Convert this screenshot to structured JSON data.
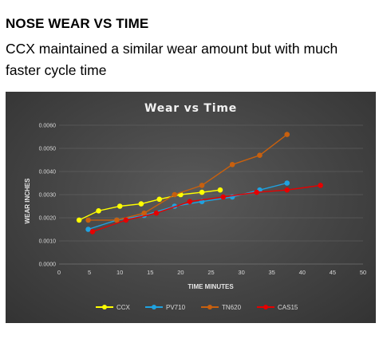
{
  "heading": "NOSE WEAR VS TIME",
  "subtitle": "CCX maintained a similar wear amount but with much faster cycle time",
  "chart_data": {
    "type": "line",
    "title": "Wear vs Time",
    "xlabel": "TIME MINUTES",
    "ylabel": "WEAR INCHES",
    "xlim": [
      0,
      50
    ],
    "ylim": [
      0,
      0.006
    ],
    "x_ticks": [
      "0",
      "5",
      "10",
      "15",
      "20",
      "25",
      "30",
      "35",
      "40",
      "45",
      "50"
    ],
    "y_ticks": [
      "0.0000",
      "0.0010",
      "0.0020",
      "0.0030",
      "0.0040",
      "0.0050",
      "0.0060"
    ],
    "grid": true,
    "legend_position": "bottom",
    "series": [
      {
        "name": "CCX",
        "color": "#ffff00",
        "points": [
          [
            3.3,
            0.0019
          ],
          [
            6.5,
            0.0023
          ],
          [
            10,
            0.0025
          ],
          [
            13.5,
            0.0026
          ],
          [
            16.5,
            0.0028
          ],
          [
            20,
            0.003
          ],
          [
            23.5,
            0.0031
          ],
          [
            26.5,
            0.0032
          ]
        ]
      },
      {
        "name": "PV710",
        "color": "#1fa2e0",
        "points": [
          [
            4.8,
            0.0015
          ],
          [
            9.5,
            0.0019
          ],
          [
            14,
            0.0021
          ],
          [
            19,
            0.0025
          ],
          [
            23.5,
            0.0027
          ],
          [
            28.5,
            0.0029
          ],
          [
            33,
            0.0032
          ],
          [
            37.5,
            0.0035
          ]
        ]
      },
      {
        "name": "TN620",
        "color": "#c8600e",
        "points": [
          [
            4.8,
            0.0019
          ],
          [
            9.5,
            0.0019
          ],
          [
            14,
            0.0022
          ],
          [
            19,
            0.003
          ],
          [
            23.5,
            0.0034
          ],
          [
            28.5,
            0.0043
          ],
          [
            33,
            0.0047
          ],
          [
            37.5,
            0.0056
          ]
        ]
      },
      {
        "name": "CAS15",
        "color": "#e60000",
        "points": [
          [
            5.5,
            0.0014
          ],
          [
            11,
            0.0019
          ],
          [
            16,
            0.0022
          ],
          [
            21.5,
            0.0027
          ],
          [
            27,
            0.0029
          ],
          [
            32.5,
            0.0031
          ],
          [
            37.5,
            0.0032
          ],
          [
            43,
            0.0034
          ]
        ]
      }
    ]
  }
}
